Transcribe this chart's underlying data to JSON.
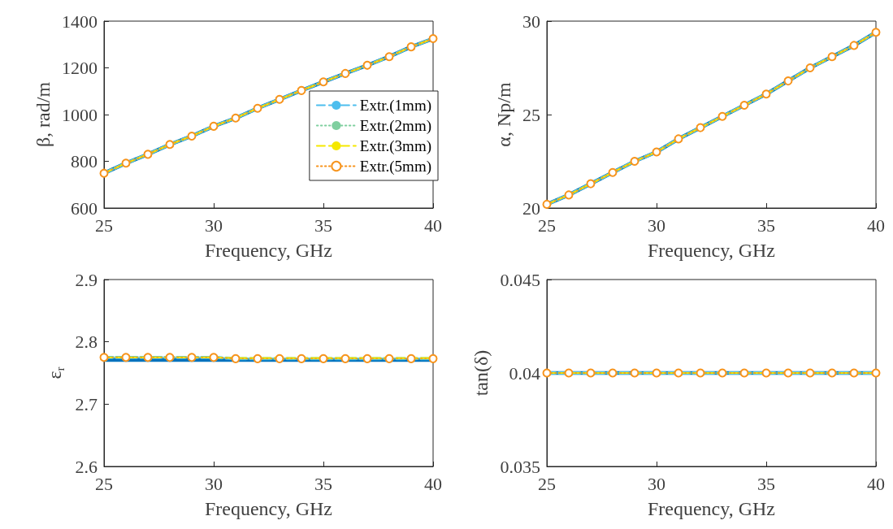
{
  "chart_data": [
    {
      "type": "line",
      "xlabel": "Frequency, GHz",
      "ylabel": "β, rad/m",
      "x": [
        25,
        26,
        27,
        28,
        29,
        30,
        31,
        32,
        33,
        34,
        35,
        36,
        37,
        38,
        39,
        40
      ],
      "xlim": [
        25,
        40
      ],
      "xticks": [
        25,
        30,
        35,
        40
      ],
      "ylim": [
        600,
        1400
      ],
      "yticks": [
        600,
        800,
        1000,
        1200,
        1400
      ],
      "grid": false,
      "legend": "right",
      "series": [
        {
          "color": "#0072bd",
          "line_style": "solid",
          "marker": "none",
          "values": [
            749,
            792,
            830,
            872,
            908,
            950,
            985,
            1027,
            1065,
            1103,
            1140,
            1176,
            1211,
            1248,
            1290,
            1325
          ]
        },
        {
          "name": "Extr.(1mm)",
          "color": "#4dbeee",
          "line_style": "dashed",
          "marker": "none",
          "values": [
            749,
            792,
            830,
            872,
            908,
            950,
            985,
            1027,
            1065,
            1103,
            1140,
            1176,
            1211,
            1248,
            1290,
            1325
          ]
        },
        {
          "name": "Extr.(2mm)",
          "color": "#7fcf9f",
          "line_style": "dotted",
          "marker": "none",
          "values": [
            749,
            792,
            830,
            872,
            908,
            950,
            985,
            1027,
            1065,
            1103,
            1140,
            1176,
            1211,
            1248,
            1290,
            1325
          ]
        },
        {
          "name": "Extr.(3mm)",
          "color": "#f5e800",
          "line_style": "dashed",
          "marker": "none",
          "values": [
            749,
            792,
            830,
            872,
            908,
            950,
            985,
            1027,
            1065,
            1103,
            1140,
            1176,
            1211,
            1248,
            1290,
            1325
          ]
        },
        {
          "name": "Extr.(5mm)",
          "color": "#f7941d",
          "line_style": "dotted",
          "marker": "circle",
          "values": [
            749,
            792,
            830,
            872,
            908,
            950,
            985,
            1027,
            1065,
            1103,
            1140,
            1176,
            1211,
            1248,
            1290,
            1325
          ]
        }
      ]
    },
    {
      "type": "line",
      "xlabel": "Frequency, GHz",
      "ylabel": "α, Np/m",
      "x": [
        25,
        26,
        27,
        28,
        29,
        30,
        31,
        32,
        33,
        34,
        35,
        36,
        37,
        38,
        39,
        40
      ],
      "xlim": [
        25,
        40
      ],
      "xticks": [
        25,
        30,
        35,
        40
      ],
      "ylim": [
        20,
        30
      ],
      "yticks": [
        20,
        25,
        30
      ],
      "grid": false,
      "series": [
        {
          "color": "#0072bd",
          "line_style": "solid",
          "marker": "none",
          "values": [
            20.2,
            20.7,
            21.3,
            21.9,
            22.5,
            23.0,
            23.7,
            24.3,
            24.9,
            25.5,
            26.1,
            26.8,
            27.5,
            28.1,
            28.7,
            29.4
          ]
        },
        {
          "color": "#4dbeee",
          "line_style": "dashed",
          "marker": "none",
          "values": [
            20.2,
            20.7,
            21.3,
            21.9,
            22.5,
            23.0,
            23.7,
            24.3,
            24.9,
            25.5,
            26.1,
            26.8,
            27.5,
            28.1,
            28.7,
            29.4
          ]
        },
        {
          "color": "#7fcf9f",
          "line_style": "dotted",
          "marker": "none",
          "values": [
            20.2,
            20.7,
            21.3,
            21.9,
            22.5,
            23.0,
            23.7,
            24.3,
            24.9,
            25.5,
            26.1,
            26.8,
            27.5,
            28.1,
            28.7,
            29.4
          ]
        },
        {
          "color": "#f5e800",
          "line_style": "dashed",
          "marker": "none",
          "values": [
            20.2,
            20.7,
            21.3,
            21.9,
            22.5,
            23.0,
            23.7,
            24.3,
            24.9,
            25.5,
            26.1,
            26.8,
            27.5,
            28.1,
            28.7,
            29.4
          ]
        },
        {
          "color": "#f7941d",
          "line_style": "dotted",
          "marker": "circle",
          "values": [
            20.2,
            20.7,
            21.3,
            21.9,
            22.5,
            23.0,
            23.7,
            24.3,
            24.9,
            25.5,
            26.1,
            26.8,
            27.5,
            28.1,
            28.7,
            29.4
          ]
        }
      ]
    },
    {
      "type": "line",
      "xlabel": "Frequency, GHz",
      "ylabel": "ε$_{r}$",
      "x": [
        25,
        26,
        27,
        28,
        29,
        30,
        31,
        32,
        33,
        34,
        35,
        36,
        37,
        38,
        39,
        40
      ],
      "xlim": [
        25,
        40
      ],
      "xticks": [
        25,
        30,
        35,
        40
      ],
      "ylim": [
        2.6,
        2.9
      ],
      "yticks": [
        2.6,
        2.7,
        2.8,
        2.9
      ],
      "grid": false,
      "series": [
        {
          "color": "#0072bd",
          "line_style": "solid",
          "marker": "none",
          "values": [
            2.771,
            2.771,
            2.771,
            2.771,
            2.771,
            2.771,
            2.771,
            2.771,
            2.771,
            2.771,
            2.771,
            2.771,
            2.771,
            2.771,
            2.771,
            2.771
          ]
        },
        {
          "color": "#4dbeee",
          "line_style": "dashed",
          "marker": "none",
          "values": [
            2.775,
            2.775,
            2.775,
            2.775,
            2.775,
            2.775,
            2.773,
            2.773,
            2.773,
            2.773,
            2.773,
            2.773,
            2.773,
            2.773,
            2.773,
            2.773
          ]
        },
        {
          "color": "#7fcf9f",
          "line_style": "dotted",
          "marker": "none",
          "values": [
            2.775,
            2.775,
            2.775,
            2.775,
            2.775,
            2.775,
            2.773,
            2.773,
            2.773,
            2.773,
            2.773,
            2.773,
            2.773,
            2.773,
            2.773,
            2.773
          ]
        },
        {
          "color": "#f5e800",
          "line_style": "dashed",
          "marker": "none",
          "values": [
            2.775,
            2.775,
            2.775,
            2.775,
            2.775,
            2.775,
            2.774,
            2.774,
            2.774,
            2.774,
            2.774,
            2.774,
            2.774,
            2.774,
            2.774,
            2.774
          ]
        },
        {
          "color": "#f7941d",
          "line_style": "dotted",
          "marker": "circle",
          "values": [
            2.775,
            2.775,
            2.775,
            2.775,
            2.775,
            2.775,
            2.773,
            2.773,
            2.773,
            2.773,
            2.773,
            2.773,
            2.773,
            2.773,
            2.773,
            2.773
          ]
        }
      ]
    },
    {
      "type": "line",
      "xlabel": "Frequency, GHz",
      "ylabel": "tan(δ)",
      "x": [
        25,
        26,
        27,
        28,
        29,
        30,
        31,
        32,
        33,
        34,
        35,
        36,
        37,
        38,
        39,
        40
      ],
      "xlim": [
        25,
        40
      ],
      "xticks": [
        25,
        30,
        35,
        40
      ],
      "ylim": [
        0.035,
        0.045
      ],
      "yticks": [
        0.035,
        0.04,
        0.045
      ],
      "grid": false,
      "series": [
        {
          "color": "#0072bd",
          "line_style": "solid",
          "marker": "none",
          "values": [
            0.04,
            0.04,
            0.04,
            0.04,
            0.04,
            0.04,
            0.04,
            0.04,
            0.04,
            0.04,
            0.04,
            0.04,
            0.04,
            0.04,
            0.04,
            0.04
          ]
        },
        {
          "color": "#4dbeee",
          "line_style": "dashed",
          "marker": "none",
          "values": [
            0.04,
            0.04,
            0.04,
            0.04,
            0.04,
            0.04,
            0.04,
            0.04,
            0.04,
            0.04,
            0.04,
            0.04,
            0.04,
            0.04,
            0.04,
            0.04
          ]
        },
        {
          "color": "#7fcf9f",
          "line_style": "dotted",
          "marker": "none",
          "values": [
            0.04,
            0.04,
            0.04,
            0.04,
            0.04,
            0.04,
            0.04,
            0.04,
            0.04,
            0.04,
            0.04,
            0.04,
            0.04,
            0.04,
            0.04,
            0.04
          ]
        },
        {
          "color": "#f5e800",
          "line_style": "dashed",
          "marker": "none",
          "values": [
            0.04,
            0.04,
            0.04,
            0.04,
            0.04,
            0.04,
            0.04,
            0.04,
            0.04,
            0.04,
            0.04,
            0.04,
            0.04,
            0.04,
            0.04,
            0.04
          ]
        },
        {
          "color": "#f7941d",
          "line_style": "dotted",
          "marker": "circle",
          "values": [
            0.04,
            0.04,
            0.04,
            0.04,
            0.04,
            0.04,
            0.04,
            0.04,
            0.04,
            0.04,
            0.04,
            0.04,
            0.04,
            0.04,
            0.04,
            0.04
          ]
        }
      ]
    }
  ]
}
